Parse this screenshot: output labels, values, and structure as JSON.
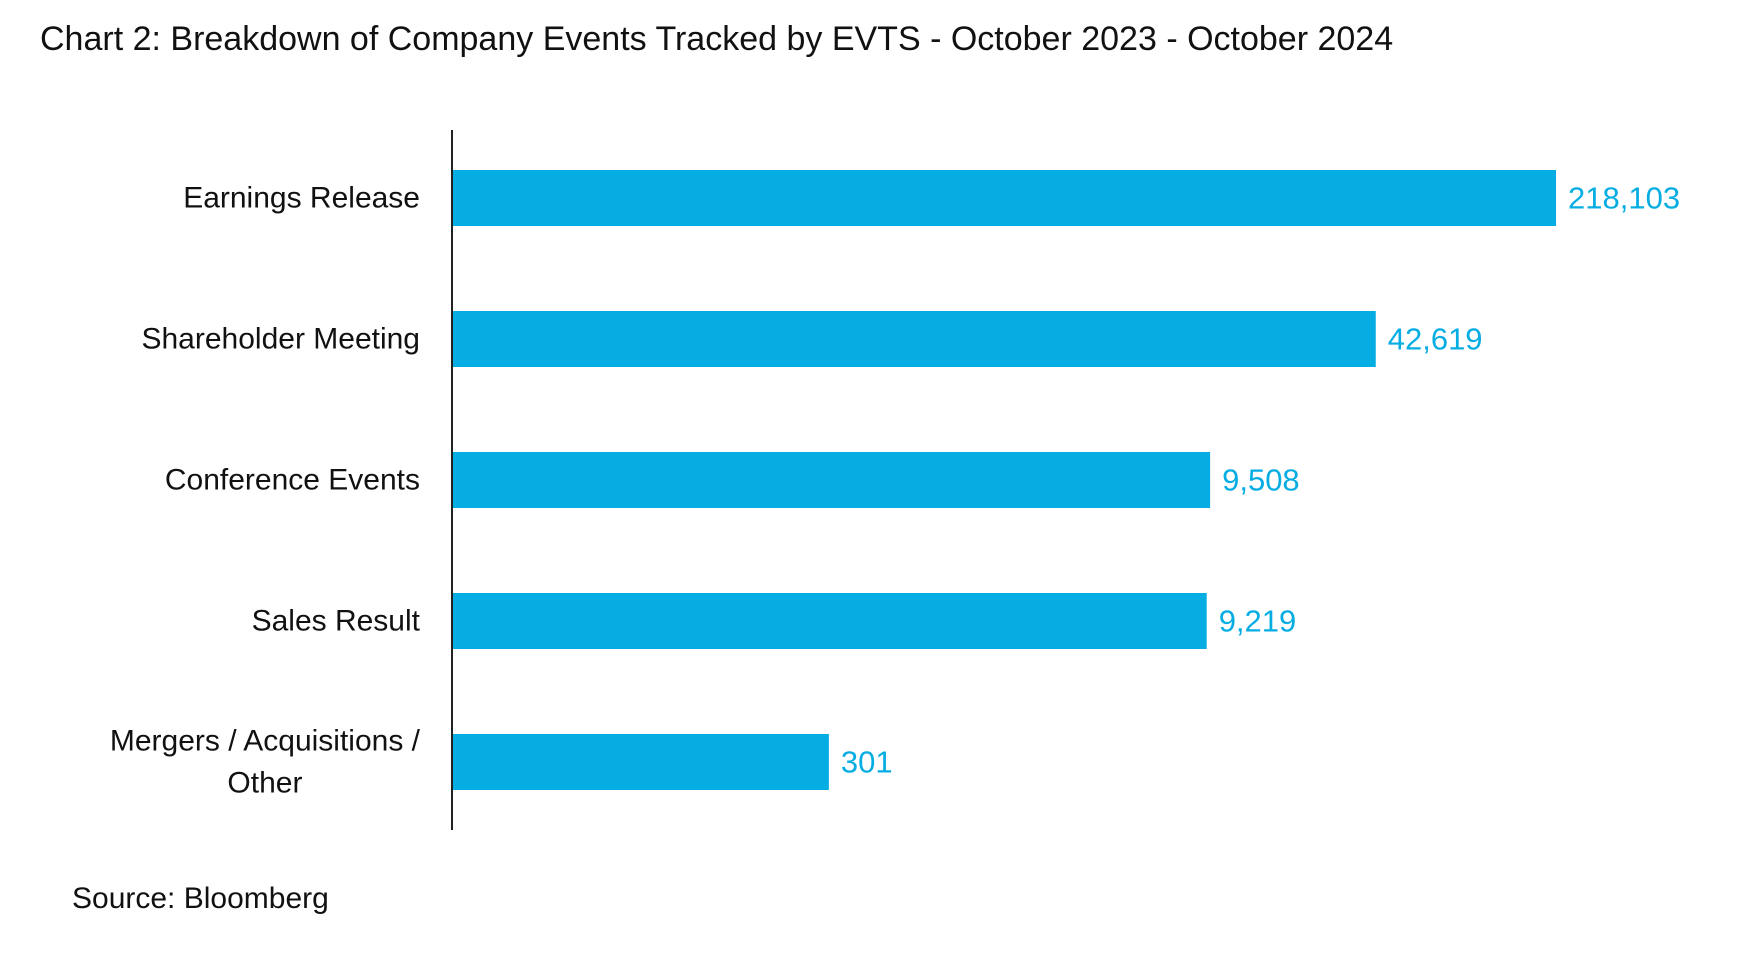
{
  "chart_data": {
    "type": "bar",
    "orientation": "horizontal",
    "title": "Chart 2: Breakdown of Company Events Tracked by EVTS  - October 2023 - October 2024",
    "categories": [
      "Earnings Release",
      "Shareholder Meeting",
      "Conference Events",
      "Sales Result",
      "Mergers / Acquisitions / Other"
    ],
    "category_lines": [
      [
        "Earnings Release"
      ],
      [
        "Shareholder Meeting"
      ],
      [
        "Conference Events"
      ],
      [
        "Sales Result"
      ],
      [
        "Mergers / Acquisitions /",
        "Other"
      ]
    ],
    "values": [
      218103,
      42619,
      9508,
      9219,
      301
    ],
    "data_labels": [
      "218,103",
      "42,619",
      "9,508",
      "9,219",
      "301"
    ],
    "scale": "log",
    "xlim": [
      10,
      250000
    ],
    "x_axis_visible": false,
    "grid": false,
    "legend": "none",
    "source": "Source: Bloomberg",
    "colors": {
      "bar": "#05ADE3",
      "value_label": "#05ADE3",
      "axis": "#222222"
    }
  }
}
